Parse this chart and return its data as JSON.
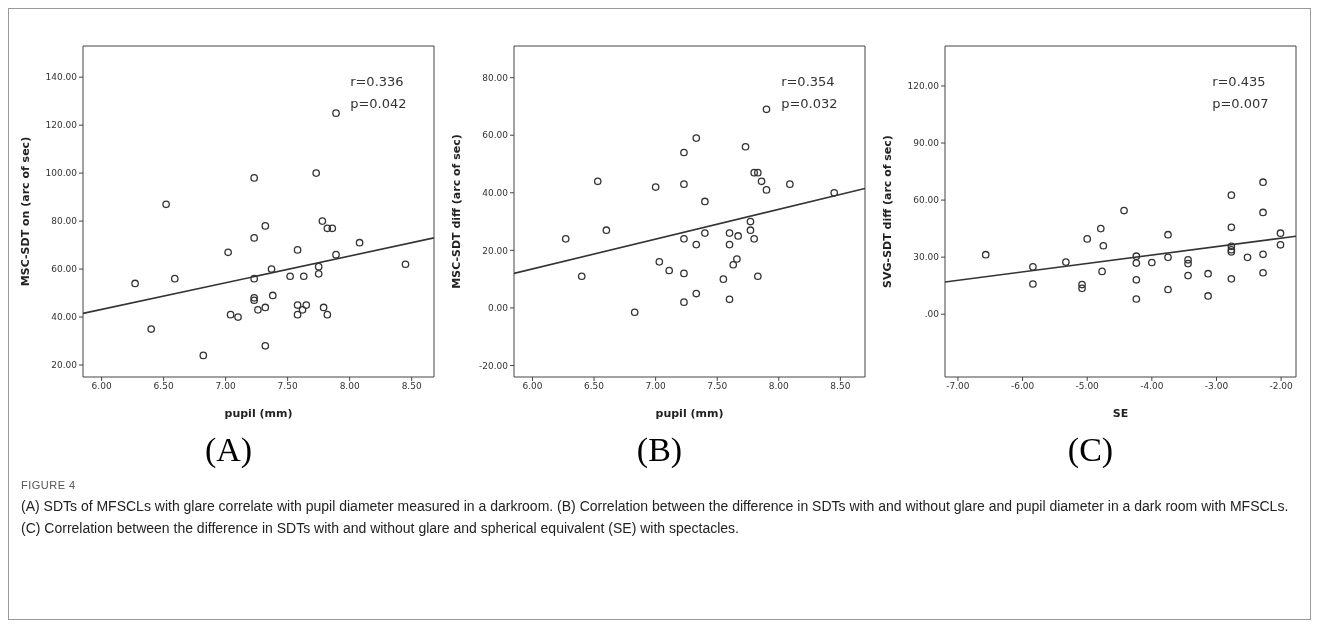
{
  "chart_data": [
    {
      "type": "scatter",
      "title": "(A)",
      "xlabel": "pupil (mm)",
      "ylabel": "MSC-SDT on (arc of sec)",
      "xlim": [
        5.85,
        8.68
      ],
      "ylim": [
        15,
        153
      ],
      "xticks": [
        {
          "value": 6,
          "label": "6.00"
        },
        {
          "value": 6.5,
          "label": "6.50"
        },
        {
          "value": 7,
          "label": "7.00"
        },
        {
          "value": 7.5,
          "label": "7.50"
        },
        {
          "value": 8,
          "label": "8.00"
        },
        {
          "value": 8.5,
          "label": "8.50"
        }
      ],
      "yticks": [
        {
          "value": 20,
          "label": "20.00"
        },
        {
          "value": 40,
          "label": "40.00"
        },
        {
          "value": 60,
          "label": "60.00"
        },
        {
          "value": 80,
          "label": "80.00"
        },
        {
          "value": 100,
          "label": "100.00"
        },
        {
          "value": 120,
          "label": "120.00"
        },
        {
          "value": 140,
          "label": "140.00"
        }
      ],
      "annotations": [
        "r=0.336",
        "p=0.042"
      ],
      "series": [
        {
          "type": "scatter",
          "marker": "circle",
          "color": "#333333",
          "x": [
            6.27,
            6.4,
            6.52,
            6.59,
            6.82,
            7.02,
            7.04,
            7.1,
            7.23,
            7.23,
            7.23,
            7.23,
            7.23,
            7.26,
            7.32,
            7.32,
            7.32,
            7.37,
            7.38,
            7.52,
            7.58,
            7.58,
            7.58,
            7.62,
            7.63,
            7.65,
            7.73,
            7.75,
            7.75,
            7.78,
            7.79,
            7.82,
            7.82,
            7.86,
            7.89,
            7.89,
            8.08,
            8.45
          ],
          "values": [
            54,
            35,
            87,
            56,
            24,
            67,
            41,
            40,
            98,
            73,
            56,
            48,
            47,
            43,
            78,
            44,
            28,
            60,
            49,
            57,
            68,
            45,
            41,
            43,
            57,
            45,
            100,
            61,
            58,
            80,
            44,
            77,
            41,
            77,
            66,
            125,
            71,
            62
          ]
        },
        {
          "type": "line",
          "color": "#333333",
          "line_style": "solid",
          "x": [
            5.85,
            8.68
          ],
          "values": [
            41.5,
            73
          ]
        }
      ]
    },
    {
      "type": "scatter",
      "title": "(B)",
      "xlabel": "pupil (mm)",
      "ylabel": "MSC-SDT diff (arc of sec)",
      "xlim": [
        5.85,
        8.7
      ],
      "ylim": [
        -24,
        91
      ],
      "xticks": [
        {
          "value": 6,
          "label": "6.00"
        },
        {
          "value": 6.5,
          "label": "6.50"
        },
        {
          "value": 7,
          "label": "7.00"
        },
        {
          "value": 7.5,
          "label": "7.50"
        },
        {
          "value": 8,
          "label": "8.00"
        },
        {
          "value": 8.5,
          "label": "8.50"
        }
      ],
      "yticks": [
        {
          "value": -20,
          "label": "-20.00"
        },
        {
          "value": 0,
          "label": "0.00"
        },
        {
          "value": 20,
          "label": "20.00"
        },
        {
          "value": 40,
          "label": "40.00"
        },
        {
          "value": 60,
          "label": "60.00"
        },
        {
          "value": 80,
          "label": "80.00"
        }
      ],
      "annotations": [
        "r=0.354",
        "p=0.032"
      ],
      "series": [
        {
          "type": "scatter",
          "marker": "circle",
          "color": "#333333",
          "x": [
            6.27,
            6.4,
            6.53,
            6.6,
            6.83,
            7.0,
            7.03,
            7.11,
            7.23,
            7.23,
            7.23,
            7.23,
            7.23,
            7.33,
            7.33,
            7.33,
            7.4,
            7.4,
            7.55,
            7.6,
            7.6,
            7.6,
            7.63,
            7.66,
            7.67,
            7.73,
            7.77,
            7.77,
            7.8,
            7.8,
            7.83,
            7.83,
            7.86,
            7.9,
            7.9,
            8.09,
            8.45
          ],
          "values": [
            24,
            11,
            44,
            27,
            -1.5,
            42,
            16,
            13,
            54,
            43,
            24,
            12,
            2,
            59,
            22,
            5,
            26,
            37,
            10,
            26,
            22,
            3,
            15,
            17,
            25,
            56,
            30,
            27,
            24,
            47,
            47,
            11,
            44,
            41,
            69,
            43,
            40
          ]
        },
        {
          "type": "line",
          "color": "#333333",
          "line_style": "solid",
          "x": [
            5.85,
            8.7
          ],
          "values": [
            12,
            41.5
          ]
        }
      ]
    },
    {
      "type": "scatter",
      "title": "(C)",
      "xlabel": "SE",
      "ylabel": "SVG-SDT diff (arc of sec)",
      "xlim": [
        -7.2,
        -1.77
      ],
      "ylim": [
        -33,
        141
      ],
      "xticks": [
        {
          "value": -7,
          "label": "-7.00"
        },
        {
          "value": -6,
          "label": "-6.00"
        },
        {
          "value": -5,
          "label": "-5.00"
        },
        {
          "value": -4,
          "label": "-4.00"
        },
        {
          "value": -3,
          "label": "-3.00"
        },
        {
          "value": -2,
          "label": "-2.00"
        }
      ],
      "yticks": [
        {
          "value": 0,
          "label": ".00"
        },
        {
          "value": 30,
          "label": "30.00"
        },
        {
          "value": 60,
          "label": "60.00"
        },
        {
          "value": 90,
          "label": "90.00"
        },
        {
          "value": 120,
          "label": "120.00"
        }
      ],
      "annotations": [
        "r=0.435",
        "p=0.007"
      ],
      "series": [
        {
          "type": "scatter",
          "marker": "circle",
          "color": "#333333",
          "x": [
            -6.57,
            -5.84,
            -5.84,
            -5.33,
            -5.08,
            -5.08,
            -5.0,
            -4.79,
            -4.75,
            -4.77,
            -4.43,
            -4.24,
            -4.24,
            -4.24,
            -4.24,
            -4.0,
            -3.75,
            -3.75,
            -3.75,
            -3.44,
            -3.44,
            -3.44,
            -3.13,
            -3.13,
            -2.77,
            -2.77,
            -2.77,
            -2.77,
            -2.77,
            -2.77,
            -2.52,
            -2.28,
            -2.28,
            -2.28,
            -2.28,
            -2.01,
            -2.01
          ],
          "values": [
            31.3,
            24.9,
            15.9,
            27.4,
            15.6,
            13.6,
            39.6,
            45,
            36,
            22.5,
            54.5,
            30.5,
            26.9,
            18.1,
            8,
            27.2,
            41.8,
            29.9,
            13,
            28.6,
            26.6,
            20.3,
            21.3,
            9.6,
            62.6,
            45.7,
            35.7,
            33.9,
            32.8,
            18.6,
            29.9,
            69.4,
            53.5,
            31.5,
            21.8,
            42.6,
            36.5
          ]
        },
        {
          "type": "line",
          "color": "#333333",
          "line_style": "solid",
          "x": [
            -7.2,
            -1.77
          ],
          "values": [
            16.9,
            41
          ]
        }
      ]
    },
    {
      "type": "other",
      "title": "FIGURE 4",
      "annotations": [
        "(A) SDTs of MFSCLs with glare correlate with pupil diameter measured in a darkroom. (B) Correlation between the difference in SDTs with and without glare and pupil diameter in a dark room with MFSCLs. (C) Correlation between the difference in SDTs with and without glare and spherical equivalent (SE) with spectacles."
      ]
    }
  ]
}
